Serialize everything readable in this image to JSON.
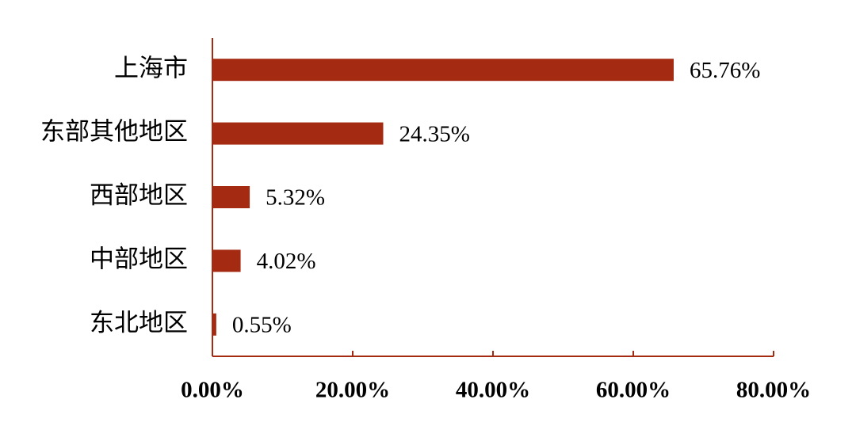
{
  "chart_data": {
    "type": "hbar",
    "categories": [
      "上海市",
      "东部其他地区",
      "西部地区",
      "中部地区",
      "东北地区"
    ],
    "values": [
      65.76,
      24.35,
      5.32,
      4.02,
      0.55
    ],
    "value_labels": [
      "65.76%",
      "24.35%",
      "5.32%",
      "4.02%",
      "0.55%"
    ],
    "color": "#a52a12",
    "xlim": [
      0,
      80
    ],
    "xticks": [
      {
        "value": 0,
        "label": "0.00%"
      },
      {
        "value": 20,
        "label": "20.00%"
      },
      {
        "value": 40,
        "label": "40.00%"
      },
      {
        "value": 60,
        "label": "60.00%"
      },
      {
        "value": 80,
        "label": "80.00%"
      }
    ],
    "grid": false
  }
}
